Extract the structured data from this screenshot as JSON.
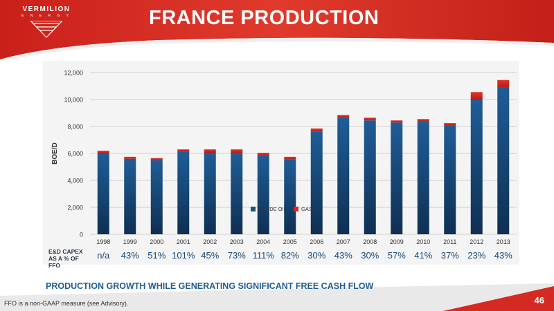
{
  "header": {
    "company_name": "VERMILION",
    "company_sub": "E N E R G Y",
    "title": "FRANCE PRODUCTION"
  },
  "colors": {
    "brand_red": "#d52a22",
    "crude_oil": "#1a4f82",
    "gas": "#d42a1e",
    "capex_text": "#14497a",
    "tagline": "#1f5d92"
  },
  "chart_data": {
    "type": "bar",
    "stacked": true,
    "categories": [
      "1998",
      "1999",
      "2000",
      "2001",
      "2002",
      "2003",
      "2004",
      "2005",
      "2006",
      "2007",
      "2008",
      "2009",
      "2010",
      "2011",
      "2012",
      "2013"
    ],
    "series": [
      {
        "name": "CRUDE OIL",
        "values": [
          6000,
          5600,
          5500,
          6150,
          6050,
          6050,
          5800,
          5550,
          7600,
          8650,
          8450,
          8300,
          8350,
          8100,
          10000,
          10900
        ]
      },
      {
        "name": "GAS",
        "values": [
          200,
          150,
          150,
          150,
          250,
          250,
          250,
          200,
          250,
          200,
          200,
          150,
          200,
          150,
          550,
          550
        ]
      }
    ],
    "ylabel": "BOE/D",
    "xlabel": "",
    "ylim": [
      0,
      12000
    ],
    "yticks": [
      "0",
      "2,000",
      "4,000",
      "6,000",
      "8,000",
      "10,000",
      "12,000"
    ],
    "grid": true,
    "legend": "bottom"
  },
  "capex": {
    "label_line1": "E&D CAPEX",
    "label_line2": "AS A % OF FFO",
    "values": [
      "n/a",
      "43%",
      "51%",
      "101%",
      "45%",
      "73%",
      "111%",
      "82%",
      "30%",
      "43%",
      "30%",
      "57%",
      "41%",
      "37%",
      "23%",
      "43%"
    ]
  },
  "tagline": "PRODUCTION GROWTH WHILE GENERATING SIGNIFICANT FREE CASH FLOW",
  "footnote": "FFO is a non-GAAP measure (see Advisory).",
  "page_number": "46"
}
